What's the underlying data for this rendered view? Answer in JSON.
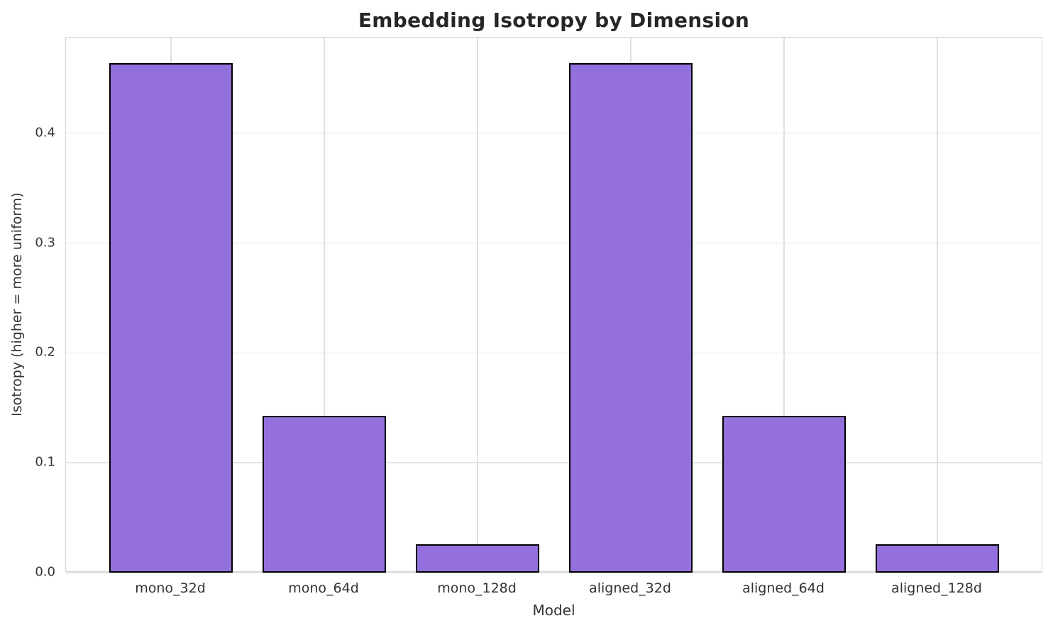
{
  "title": "Embedding Isotropy by Dimension",
  "chart_data": {
    "type": "bar",
    "title": "Embedding Isotropy by Dimension",
    "xlabel": "Model",
    "ylabel": "Isotropy (higher = more uniform)",
    "categories": [
      "mono_32d",
      "mono_64d",
      "mono_128d",
      "aligned_32d",
      "aligned_64d",
      "aligned_128d"
    ],
    "values": [
      0.464,
      0.143,
      0.026,
      0.464,
      0.143,
      0.026
    ],
    "yticks": [
      0.0,
      0.1,
      0.2,
      0.3,
      0.4
    ],
    "ytick_labels": [
      "0.0",
      "0.1",
      "0.2",
      "0.3",
      "0.4"
    ],
    "ylim": [
      0,
      0.487
    ],
    "grid": true,
    "legend_position": "none",
    "bar_color": "#9370DB",
    "bar_edge_color": "#000000",
    "grid_color": "#e4e4e4",
    "spine_color": "#d4d4d4",
    "text_color": "#333333",
    "title_color": "#262626",
    "background_color": "#ffffff"
  }
}
